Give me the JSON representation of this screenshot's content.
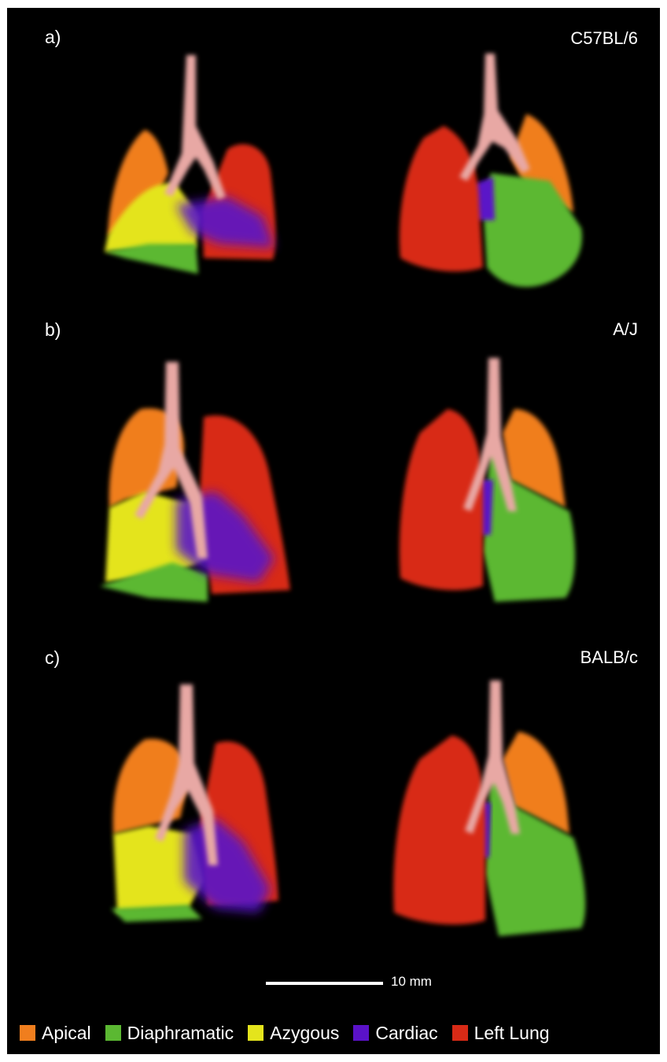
{
  "panels": [
    {
      "label": "a)",
      "strain": "C57BL/6"
    },
    {
      "label": "b)",
      "strain": "A/J"
    },
    {
      "label": "c)",
      "strain": "BALB/c"
    }
  ],
  "scale_bar": {
    "label": "10 mm"
  },
  "legend": [
    {
      "name": "Apical",
      "color": "#f07e1e"
    },
    {
      "name": "Diaphramatic",
      "color": "#5bb832"
    },
    {
      "name": "Azygous",
      "color": "#e4e41c"
    },
    {
      "name": "Cardiac",
      "color": "#5a12c8"
    },
    {
      "name": "Left Lung",
      "color": "#d82a16"
    }
  ],
  "colors": {
    "background": "#000000",
    "trachea": "#e8a8a4",
    "text": "#ffffff"
  }
}
